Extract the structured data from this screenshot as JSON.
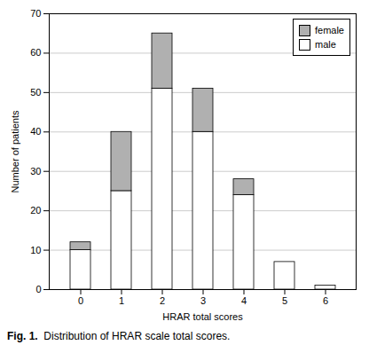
{
  "chart_data": {
    "type": "bar",
    "stacked": true,
    "categories": [
      0,
      1,
      2,
      3,
      4,
      5,
      6
    ],
    "series": [
      {
        "name": "male",
        "color": "#ffffff",
        "values": [
          10,
          25,
          51,
          40,
          24,
          7,
          1
        ]
      },
      {
        "name": "female",
        "color": "#b0b0b0",
        "values": [
          2,
          15,
          14,
          11,
          4,
          0,
          0
        ]
      }
    ],
    "xlabel": "HRAR total scores",
    "ylabel": "Number of patients",
    "ylim": [
      0,
      70
    ],
    "yticks": [
      0,
      10,
      20,
      30,
      40,
      50,
      60,
      70
    ],
    "grid": true,
    "legend": "upper right",
    "caption": [
      "Fig. 1.",
      "Distribution of HRAR scale total scores."
    ]
  }
}
